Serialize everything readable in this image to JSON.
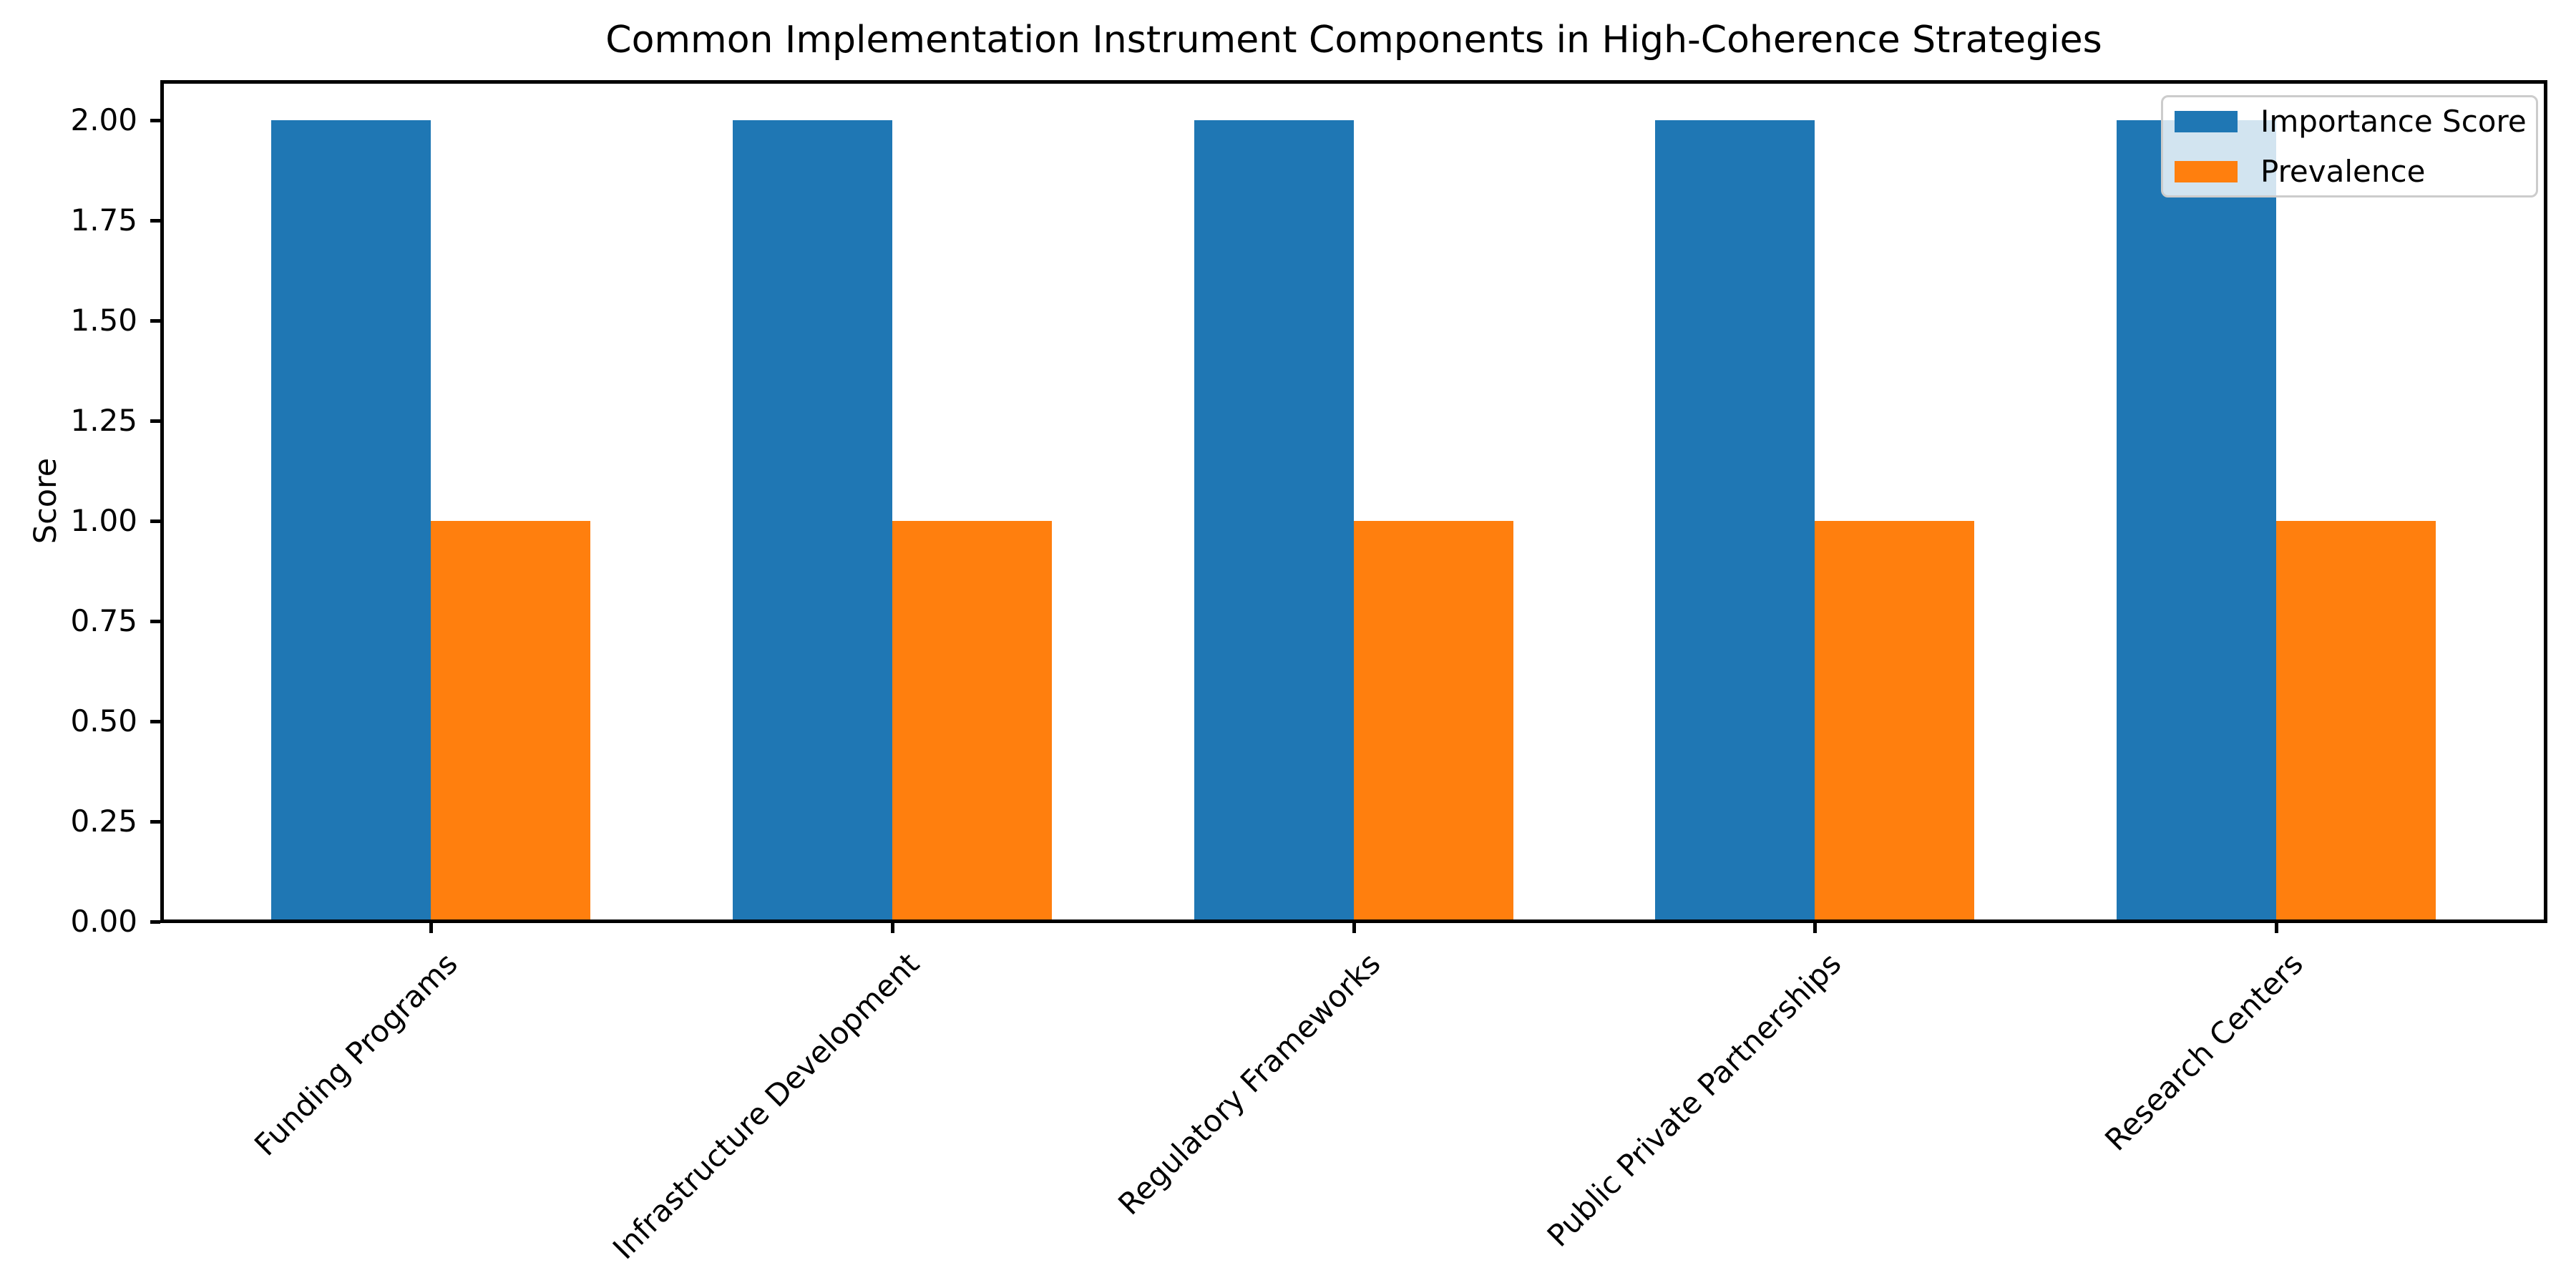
{
  "chart_data": {
    "type": "bar",
    "title": "Common Implementation Instrument Components in High-Coherence Strategies",
    "xlabel": "",
    "ylabel": "Score",
    "categories": [
      "Funding Programs",
      "Infrastructure Development",
      "Regulatory Frameworks",
      "Public Private Partnerships",
      "Research Centers"
    ],
    "series": [
      {
        "name": "Importance Score",
        "color": "#1f77b4",
        "values": [
          2,
          2,
          2,
          2,
          2
        ]
      },
      {
        "name": "Prevalence",
        "color": "#ff7f0e",
        "values": [
          1,
          1,
          1,
          1,
          1
        ]
      }
    ],
    "y_ticks": [
      "0.00",
      "0.25",
      "0.50",
      "0.75",
      "1.00",
      "1.25",
      "1.50",
      "1.75",
      "2.00"
    ],
    "ylim": [
      0,
      2.1
    ],
    "grid": "off",
    "legend_position": "upper right",
    "bar_layout": "grouped"
  }
}
